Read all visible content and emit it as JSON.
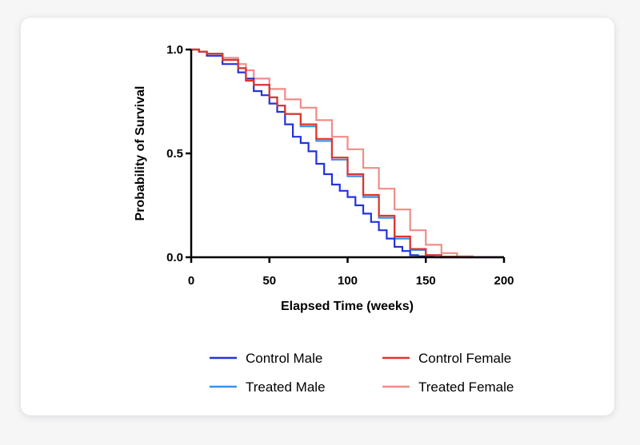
{
  "chart_data": {
    "type": "line",
    "xlabel": "Elapsed Time (weeks)",
    "ylabel": "Probability of Survival",
    "xlim": [
      0,
      200
    ],
    "ylim": [
      0,
      1
    ],
    "x_ticks": [
      0,
      50,
      100,
      150,
      200
    ],
    "x_tick_labels": [
      "0",
      "50",
      "100",
      "150",
      "200"
    ],
    "y_ticks": [
      0,
      0.5,
      1
    ],
    "y_tick_labels": [
      "0.0",
      "0.5",
      "1.0"
    ],
    "grid": false,
    "legend_position": "bottom",
    "series": [
      {
        "name": "Control Male",
        "color": "#2233dd",
        "x": [
          0,
          5,
          10,
          20,
          30,
          35,
          40,
          45,
          50,
          55,
          60,
          65,
          70,
          75,
          80,
          85,
          90,
          95,
          100,
          105,
          110,
          115,
          120,
          125,
          130,
          135,
          140,
          145,
          150,
          155,
          200
        ],
        "y": [
          1.0,
          0.99,
          0.97,
          0.93,
          0.89,
          0.86,
          0.8,
          0.78,
          0.74,
          0.7,
          0.64,
          0.58,
          0.55,
          0.51,
          0.45,
          0.4,
          0.35,
          0.32,
          0.29,
          0.25,
          0.21,
          0.17,
          0.13,
          0.09,
          0.05,
          0.03,
          0.01,
          0.005,
          0.002,
          0.0,
          0.0
        ]
      },
      {
        "name": "Control Female",
        "color": "#e0352b",
        "x": [
          0,
          5,
          10,
          20,
          30,
          35,
          40,
          50,
          55,
          60,
          70,
          80,
          90,
          100,
          110,
          120,
          130,
          140,
          150,
          160,
          170,
          200
        ],
        "y": [
          1.0,
          0.99,
          0.98,
          0.95,
          0.91,
          0.85,
          0.83,
          0.77,
          0.73,
          0.69,
          0.64,
          0.57,
          0.48,
          0.4,
          0.3,
          0.2,
          0.1,
          0.04,
          0.01,
          0.003,
          0.0,
          0.0
        ]
      },
      {
        "name": "Treated Male",
        "color": "#3d8fe8",
        "x": [
          0,
          5,
          10,
          20,
          30,
          35,
          40,
          50,
          55,
          60,
          70,
          80,
          90,
          100,
          110,
          120,
          130,
          140,
          150,
          160,
          200
        ],
        "y": [
          1.0,
          0.99,
          0.98,
          0.95,
          0.91,
          0.85,
          0.83,
          0.77,
          0.73,
          0.69,
          0.63,
          0.56,
          0.47,
          0.39,
          0.29,
          0.19,
          0.09,
          0.035,
          0.01,
          0.0,
          0.0
        ]
      },
      {
        "name": "Treated Female",
        "color": "#f08c86",
        "x": [
          0,
          5,
          10,
          20,
          30,
          35,
          40,
          50,
          60,
          70,
          80,
          90,
          100,
          110,
          120,
          130,
          140,
          150,
          160,
          170,
          180,
          200
        ],
        "y": [
          1.0,
          0.99,
          0.98,
          0.96,
          0.93,
          0.9,
          0.86,
          0.81,
          0.76,
          0.72,
          0.66,
          0.58,
          0.52,
          0.43,
          0.33,
          0.23,
          0.13,
          0.06,
          0.02,
          0.005,
          0.0,
          0.0
        ]
      }
    ]
  }
}
